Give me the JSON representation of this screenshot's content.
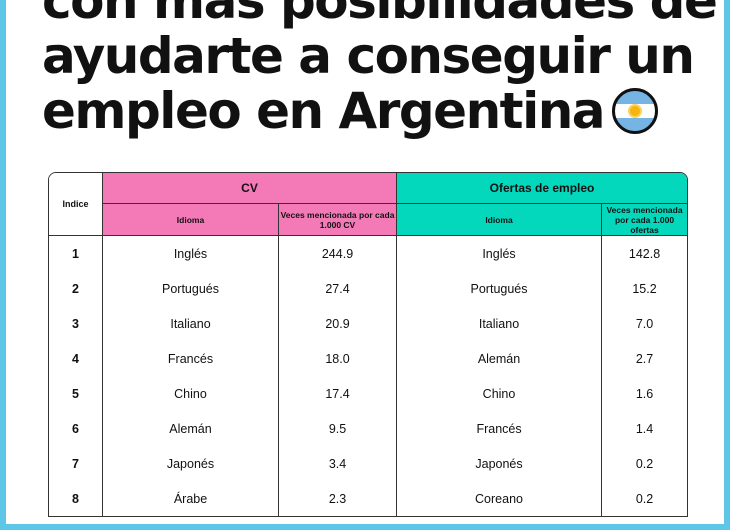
{
  "headline": {
    "line1": "con más posibilidades de",
    "line2": "ayudarte a conseguir un",
    "line3": "empleo en Argentina"
  },
  "table": {
    "index_header": "Indice",
    "cv_header": "CV",
    "offers_header": "Ofertas de empleo",
    "cv_language_header": "Idioma",
    "cv_mentions_header": "Veces mencionada por cada 1.000 CV",
    "offers_language_header": "Idioma",
    "offers_mentions_header": "Veces mencionada por cada 1.000 ofertas",
    "rows": [
      {
        "index": "1",
        "cv_language": "Inglés",
        "cv_value": "244.9",
        "offer_language": "Inglés",
        "offer_value": "142.8"
      },
      {
        "index": "2",
        "cv_language": "Portugués",
        "cv_value": "27.4",
        "offer_language": "Portugués",
        "offer_value": "15.2"
      },
      {
        "index": "3",
        "cv_language": "Italiano",
        "cv_value": "20.9",
        "offer_language": "Italiano",
        "offer_value": "7.0"
      },
      {
        "index": "4",
        "cv_language": "Francés",
        "cv_value": "18.0",
        "offer_language": "Alemán",
        "offer_value": "2.7"
      },
      {
        "index": "5",
        "cv_language": "Chino",
        "cv_value": "17.4",
        "offer_language": "Chino",
        "offer_value": "1.6"
      },
      {
        "index": "6",
        "cv_language": "Alemán",
        "cv_value": "9.5",
        "offer_language": "Francés",
        "offer_value": "1.4"
      },
      {
        "index": "7",
        "cv_language": "Japonés",
        "cv_value": "3.4",
        "offer_language": "Japonés",
        "offer_value": "0.2"
      },
      {
        "index": "8",
        "cv_language": "Árabe",
        "cv_value": "2.3",
        "offer_language": "Coreano",
        "offer_value": "0.2"
      }
    ]
  },
  "colors": {
    "cv_accent": "#f379b7",
    "offers_accent": "#03d8bd",
    "frame": "#5ec6e6"
  },
  "icons": {
    "flag": "argentina-flag-icon"
  }
}
